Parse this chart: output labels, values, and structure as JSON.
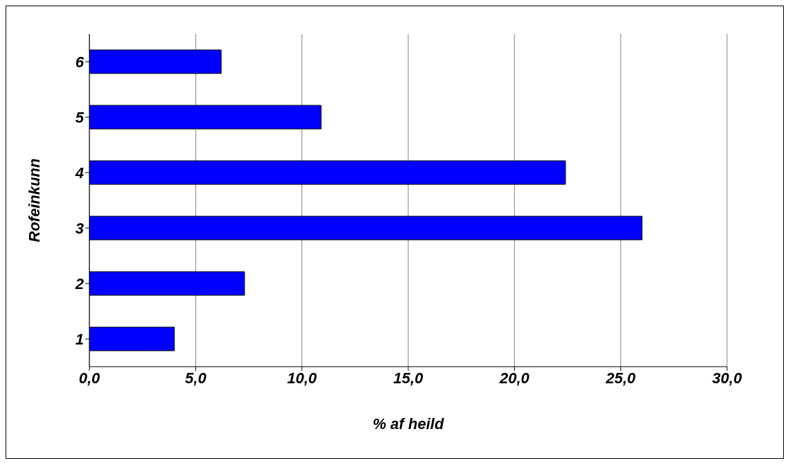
{
  "chart_data": {
    "type": "bar",
    "orientation": "horizontal",
    "xlabel": "% af heild",
    "ylabel": "Rofeinkunn",
    "categories": [
      "6",
      "5",
      "4",
      "3",
      "2",
      "1"
    ],
    "values": [
      6.2,
      10.9,
      22.4,
      26.0,
      7.3,
      4.0
    ],
    "color": "#0000ff",
    "xlim": [
      0,
      30
    ],
    "xticks": [
      {
        "value": 0,
        "label": "0,0"
      },
      {
        "value": 5,
        "label": "5,0"
      },
      {
        "value": 10,
        "label": "10,0"
      },
      {
        "value": 15,
        "label": "15,0"
      },
      {
        "value": 20,
        "label": "20,0"
      },
      {
        "value": 25,
        "label": "25,0"
      },
      {
        "value": 30,
        "label": "30,0"
      }
    ],
    "grid": "x"
  }
}
